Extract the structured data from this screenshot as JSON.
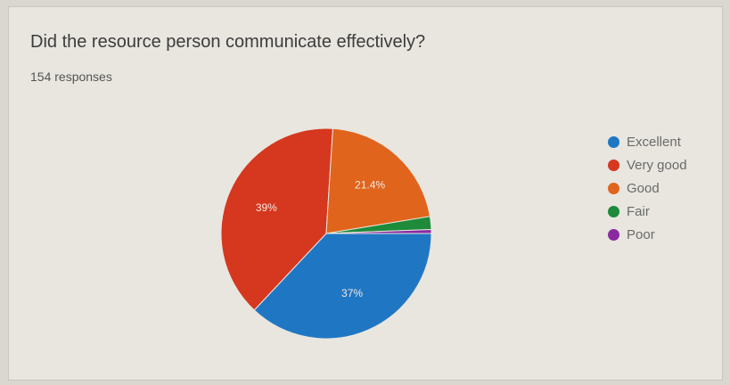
{
  "form": {
    "question": "Did the resource person communicate effectively?",
    "responses": "154 responses"
  },
  "chart_data": {
    "type": "pie",
    "legend_position": "right",
    "slices": [
      {
        "label": "Excellent",
        "value": 37,
        "display": "37%",
        "color": "#1f77c4"
      },
      {
        "label": "Very good",
        "value": 39,
        "display": "39%",
        "color": "#d6371f"
      },
      {
        "label": "Good",
        "value": 21.4,
        "display": "21.4%",
        "color": "#e0641c"
      },
      {
        "label": "Fair",
        "value": 2.0,
        "display": "",
        "color": "#1e8b3a"
      },
      {
        "label": "Poor",
        "value": 0.6,
        "display": "",
        "color": "#8a2aa0"
      }
    ]
  }
}
